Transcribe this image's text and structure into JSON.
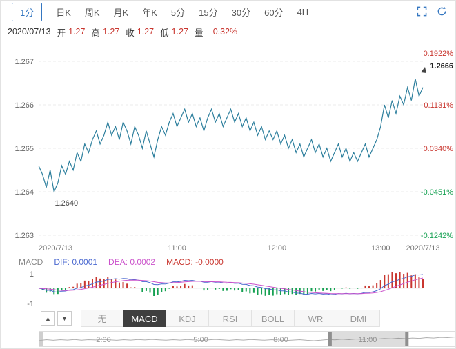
{
  "header": {
    "tabs": [
      {
        "label": "1分",
        "active": true
      },
      {
        "label": "日K"
      },
      {
        "label": "周K"
      },
      {
        "label": "月K"
      },
      {
        "label": "年K"
      },
      {
        "label": "5分"
      },
      {
        "label": "15分"
      },
      {
        "label": "30分"
      },
      {
        "label": "60分"
      },
      {
        "label": "4H"
      }
    ]
  },
  "info_bar": {
    "date": "2020/07/13",
    "fields": [
      {
        "label": "开",
        "value": "1.27"
      },
      {
        "label": "高",
        "value": "1.27"
      },
      {
        "label": "收",
        "value": "1.27"
      },
      {
        "label": "低",
        "value": "1.27"
      },
      {
        "label": "量",
        "value": "-"
      }
    ],
    "change": "0.32%"
  },
  "macd_readout": {
    "name": "MACD",
    "dif": "DIF: 0.0001",
    "dea": "DEA: 0.0002",
    "macd": "MACD: -0.0000"
  },
  "indicator_bar": {
    "up": "▲",
    "down": "▼",
    "tabs": [
      {
        "label": "无"
      },
      {
        "label": "MACD",
        "active": true
      },
      {
        "label": "KDJ"
      },
      {
        "label": "RSI"
      },
      {
        "label": "BOLL"
      },
      {
        "label": "WR"
      },
      {
        "label": "DMI"
      }
    ]
  },
  "colors": {
    "up": "#c9362f",
    "down": "#16a152",
    "line": "#2d7f9d",
    "dif": "#4a68d0",
    "dea": "#cb52cb",
    "accent": "#3577c1"
  },
  "chart_data": {
    "type": "line",
    "y_ticks": [
      "1.267",
      "1.266",
      "1.265",
      "1.264",
      "1.263"
    ],
    "right_percent_labels": [
      {
        "text": "0.1922%",
        "up": true
      },
      {
        "text": "0.1131%",
        "up": true
      },
      {
        "text": "0.0340%",
        "up": true
      },
      {
        "text": "-0.0451%",
        "up": false
      },
      {
        "text": "-0.1242%",
        "up": false
      }
    ],
    "x_ticks": [
      {
        "text": "2020/7/13",
        "pos": 0.0
      },
      {
        "text": "11:00",
        "pos": 0.36
      },
      {
        "text": "12:00",
        "pos": 0.62
      },
      {
        "text": "13:00",
        "pos": 0.89
      },
      {
        "text": "2020/7/13",
        "pos": 1.0
      }
    ],
    "last_price_label": "1.2666",
    "low_price_label": "1.2640",
    "ylim": [
      1.2628,
      1.2674
    ],
    "values": [
      1.2646,
      1.2644,
      1.2641,
      1.2645,
      1.264,
      1.2642,
      1.2646,
      1.2644,
      1.2647,
      1.2645,
      1.2649,
      1.2647,
      1.2651,
      1.2649,
      1.2652,
      1.2654,
      1.2651,
      1.2653,
      1.2656,
      1.2653,
      1.2655,
      1.2652,
      1.2656,
      1.2654,
      1.2651,
      1.2655,
      1.2653,
      1.265,
      1.2654,
      1.2651,
      1.2648,
      1.2652,
      1.2655,
      1.2653,
      1.2656,
      1.2658,
      1.2655,
      1.2657,
      1.2659,
      1.2656,
      1.2658,
      1.2655,
      1.2657,
      1.2654,
      1.2657,
      1.2659,
      1.2656,
      1.2658,
      1.2655,
      1.2657,
      1.2659,
      1.2656,
      1.2658,
      1.2655,
      1.2657,
      1.2654,
      1.2656,
      1.2653,
      1.2655,
      1.2652,
      1.2654,
      1.2652,
      1.2654,
      1.2651,
      1.2653,
      1.265,
      1.2652,
      1.2649,
      1.2651,
      1.2648,
      1.265,
      1.2652,
      1.2649,
      1.2651,
      1.2648,
      1.265,
      1.2647,
      1.2649,
      1.2651,
      1.2648,
      1.265,
      1.2647,
      1.2649,
      1.2647,
      1.2649,
      1.2651,
      1.2648,
      1.265,
      1.2652,
      1.2655,
      1.266,
      1.2657,
      1.2661,
      1.2658,
      1.2662,
      1.266,
      1.2664,
      1.2661,
      1.2666,
      1.2662,
      1.2664
    ],
    "macd": {
      "y_ticks": [
        "1",
        "-1"
      ]
    },
    "navigator": {
      "labels": [
        {
          "text": "2:00",
          "pos": 0.154
        },
        {
          "text": "5:00",
          "pos": 0.388
        },
        {
          "text": "8:00",
          "pos": 0.582
        },
        {
          "text": "11:00",
          "pos": 0.79
        }
      ],
      "window": [
        0.7,
        0.885
      ],
      "series": [
        0.42,
        0.5,
        0.44,
        0.5,
        0.46,
        0.52,
        0.45,
        0.5,
        0.47,
        0.52,
        0.48,
        0.44,
        0.5,
        0.46,
        0.51,
        0.47,
        0.53,
        0.48,
        0.45,
        0.5,
        0.46,
        0.52,
        0.47,
        0.43,
        0.49,
        0.53,
        0.48,
        0.44,
        0.5,
        0.46,
        0.52,
        0.48,
        0.45,
        0.5,
        0.47,
        0.42,
        0.46,
        0.5,
        0.44,
        0.4,
        0.45,
        0.52,
        0.48,
        0.55,
        0.5,
        0.57,
        0.53,
        0.6,
        0.56,
        0.62,
        0.58,
        0.64,
        0.6,
        0.66,
        0.63,
        0.7,
        0.66,
        0.73,
        0.7,
        0.76
      ]
    }
  }
}
